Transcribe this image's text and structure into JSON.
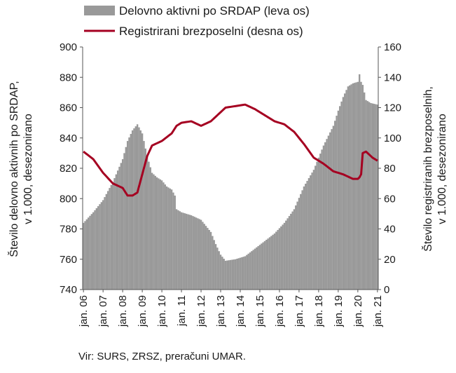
{
  "chart_data": {
    "type": "bar+line",
    "legend": {
      "placement": "top",
      "entries": [
        "Delovno aktivni po SRDAP (leva os)",
        "Registrirani brezposelni (desna os)"
      ]
    },
    "ylabel_left": [
      "Število delovno aktivnih po SRDAP,",
      "v 1.000, desezonirano"
    ],
    "ylabel_right": [
      "Število registriranih brezposelnih,",
      "v 1.000, desezonirano"
    ],
    "ylim_left": [
      740,
      900
    ],
    "ylim_right": [
      0,
      160
    ],
    "yticks_left": [
      "740",
      "760",
      "780",
      "800",
      "820",
      "840",
      "860",
      "880",
      "900"
    ],
    "yticks_right": [
      "0",
      "20",
      "40",
      "60",
      "80",
      "100",
      "120",
      "140",
      "160"
    ],
    "x_labels": [
      "jan. 06",
      "jan. 07",
      "jan. 08",
      "jan. 09",
      "jan. 10",
      "jan. 11",
      "jan. 12",
      "jan. 13",
      "jan. 14",
      "jan. 15",
      "jan. 16",
      "jan. 17",
      "jan. 18",
      "jan. 19",
      "jan. 20",
      "jan. 21"
    ],
    "grid": false,
    "series": [
      {
        "name": "Delovno aktivni po SRDAP (leva os)",
        "kind": "bar",
        "axis": "left",
        "color": "#999999",
        "points": [
          [
            "2006-01",
            784
          ],
          [
            "2006-07",
            791
          ],
          [
            "2007-01",
            799
          ],
          [
            "2007-07",
            811
          ],
          [
            "2008-01",
            826
          ],
          [
            "2008-04",
            838
          ],
          [
            "2008-07",
            845
          ],
          [
            "2008-10",
            849
          ],
          [
            "2009-01",
            843
          ],
          [
            "2009-04",
            828
          ],
          [
            "2009-07",
            817
          ],
          [
            "2009-10",
            814
          ],
          [
            "2010-01",
            812
          ],
          [
            "2010-04",
            808
          ],
          [
            "2010-07",
            806
          ],
          [
            "2010-09",
            802
          ],
          [
            "2010-10",
            793
          ],
          [
            "2011-01",
            791
          ],
          [
            "2011-07",
            789
          ],
          [
            "2012-01",
            786
          ],
          [
            "2012-07",
            778
          ],
          [
            "2012-10",
            770
          ],
          [
            "2013-01",
            763
          ],
          [
            "2013-04",
            759
          ],
          [
            "2013-10",
            760
          ],
          [
            "2014-04",
            762
          ],
          [
            "2014-10",
            767
          ],
          [
            "2015-04",
            772
          ],
          [
            "2015-10",
            777
          ],
          [
            "2016-04",
            784
          ],
          [
            "2016-10",
            793
          ],
          [
            "2017-04",
            808
          ],
          [
            "2017-10",
            819
          ],
          [
            "2018-04",
            835
          ],
          [
            "2018-10",
            848
          ],
          [
            "2019-01",
            858
          ],
          [
            "2019-04",
            867
          ],
          [
            "2019-07",
            874
          ],
          [
            "2019-10",
            876
          ],
          [
            "2020-01",
            877
          ],
          [
            "2020-02",
            882
          ],
          [
            "2020-03",
            877
          ],
          [
            "2020-04",
            875
          ],
          [
            "2020-06",
            865
          ],
          [
            "2020-09",
            863
          ],
          [
            "2021-01",
            862
          ]
        ]
      },
      {
        "name": "Registrirani brezposelni (desna os)",
        "kind": "line",
        "axis": "right",
        "color": "#a50021",
        "points": [
          [
            "2006-01",
            91
          ],
          [
            "2006-07",
            86
          ],
          [
            "2007-01",
            77
          ],
          [
            "2007-07",
            70
          ],
          [
            "2008-01",
            67
          ],
          [
            "2008-04",
            62
          ],
          [
            "2008-07",
            62
          ],
          [
            "2008-10",
            64
          ],
          [
            "2009-01",
            76
          ],
          [
            "2009-04",
            88
          ],
          [
            "2009-07",
            95
          ],
          [
            "2010-01",
            98
          ],
          [
            "2010-07",
            103
          ],
          [
            "2010-10",
            108
          ],
          [
            "2011-01",
            110
          ],
          [
            "2011-07",
            111
          ],
          [
            "2012-01",
            108
          ],
          [
            "2012-07",
            111
          ],
          [
            "2013-01",
            117
          ],
          [
            "2013-04",
            120
          ],
          [
            "2013-10",
            121
          ],
          [
            "2014-04",
            122
          ],
          [
            "2014-10",
            119
          ],
          [
            "2015-04",
            115
          ],
          [
            "2015-10",
            111
          ],
          [
            "2016-04",
            109
          ],
          [
            "2016-10",
            104
          ],
          [
            "2017-04",
            96
          ],
          [
            "2017-10",
            87
          ],
          [
            "2018-04",
            83
          ],
          [
            "2018-10",
            78
          ],
          [
            "2019-04",
            76
          ],
          [
            "2019-10",
            73
          ],
          [
            "2020-01",
            73
          ],
          [
            "2020-02",
            74
          ],
          [
            "2020-03",
            76
          ],
          [
            "2020-04",
            90
          ],
          [
            "2020-06",
            91
          ],
          [
            "2020-10",
            87
          ],
          [
            "2021-01",
            85
          ]
        ]
      }
    ]
  },
  "source": "Vir: SURS, ZRSZ, preračuni UMAR."
}
